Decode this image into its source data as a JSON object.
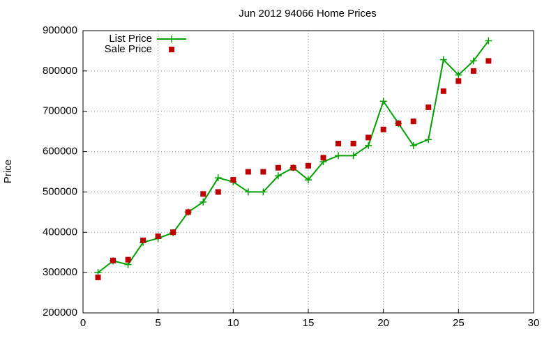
{
  "chart_data": {
    "type": "line",
    "title": "Jun 2012 94066 Home Prices",
    "y_label": "Price",
    "x": [
      1,
      2,
      3,
      4,
      5,
      6,
      7,
      8,
      9,
      10,
      11,
      12,
      13,
      14,
      15,
      16,
      17,
      18,
      19,
      20,
      21,
      22,
      23,
      24,
      25,
      26,
      27
    ],
    "series": [
      {
        "name": "List Price",
        "color": "#00a000",
        "style": "linespoints",
        "marker": "plus",
        "values": [
          300000,
          329000,
          320000,
          375000,
          385000,
          399000,
          450000,
          475000,
          535000,
          525000,
          500000,
          500000,
          540000,
          560000,
          530000,
          575000,
          590000,
          590000,
          615000,
          725000,
          670000,
          615000,
          630000,
          828000,
          790000,
          825000,
          875000
        ]
      },
      {
        "name": "Sale Price",
        "color": "#c00000",
        "style": "points",
        "marker": "square",
        "values": [
          288000,
          330000,
          332000,
          380000,
          390000,
          400000,
          450000,
          495000,
          500000,
          530000,
          550000,
          550000,
          560000,
          560000,
          565000,
          585000,
          620000,
          620000,
          635000,
          655000,
          670000,
          675000,
          710000,
          750000,
          775000,
          800000,
          825000
        ]
      }
    ],
    "xlim": [
      0,
      30
    ],
    "xticks": [
      0,
      5,
      10,
      15,
      20,
      25,
      30
    ],
    "ylim": [
      200000,
      900000
    ],
    "yticks": [
      200000,
      300000,
      400000,
      500000,
      600000,
      700000,
      800000,
      900000
    ],
    "grid": true,
    "legend": "top-left"
  }
}
